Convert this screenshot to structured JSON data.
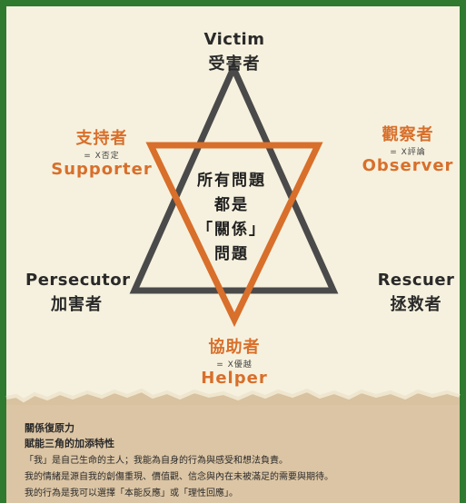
{
  "roles": {
    "victim": {
      "en": "Victim",
      "zh": "受害者"
    },
    "persecutor": {
      "en": "Persecutor",
      "zh": "加害者"
    },
    "rescuer": {
      "en": "Rescuer",
      "zh": "拯救者"
    },
    "supporter": {
      "zh": "支持者",
      "note": "= X否定",
      "en": "Supporter"
    },
    "observer": {
      "zh": "觀察者",
      "note": "= X評論",
      "en": "Observer"
    },
    "helper": {
      "zh": "協助者",
      "note": "= X優越",
      "en": "Helper"
    }
  },
  "center": {
    "lines": [
      "所有問題",
      "都是",
      "「關係」",
      "問題"
    ]
  },
  "bottom": {
    "heading1": "關係復原力",
    "heading2": "賦能三角的加添特性",
    "lines": [
      "「我」是自己生命的主人；我能為自身的行為與感受和想法負責。",
      "我的情緒是源自我的創傷重現、價值觀、信念與內在未被滿足的需要與期待。",
      "我的行為是我可以選擇「本能反應」或「理性回應」。"
    ]
  },
  "colors": {
    "frame_green": "#2f7a2f",
    "background": "#f6f1de",
    "paper_tan": "#d9c2a0",
    "triangle_dark": "#4a4a4a",
    "triangle_orange": "#d86f2b"
  }
}
